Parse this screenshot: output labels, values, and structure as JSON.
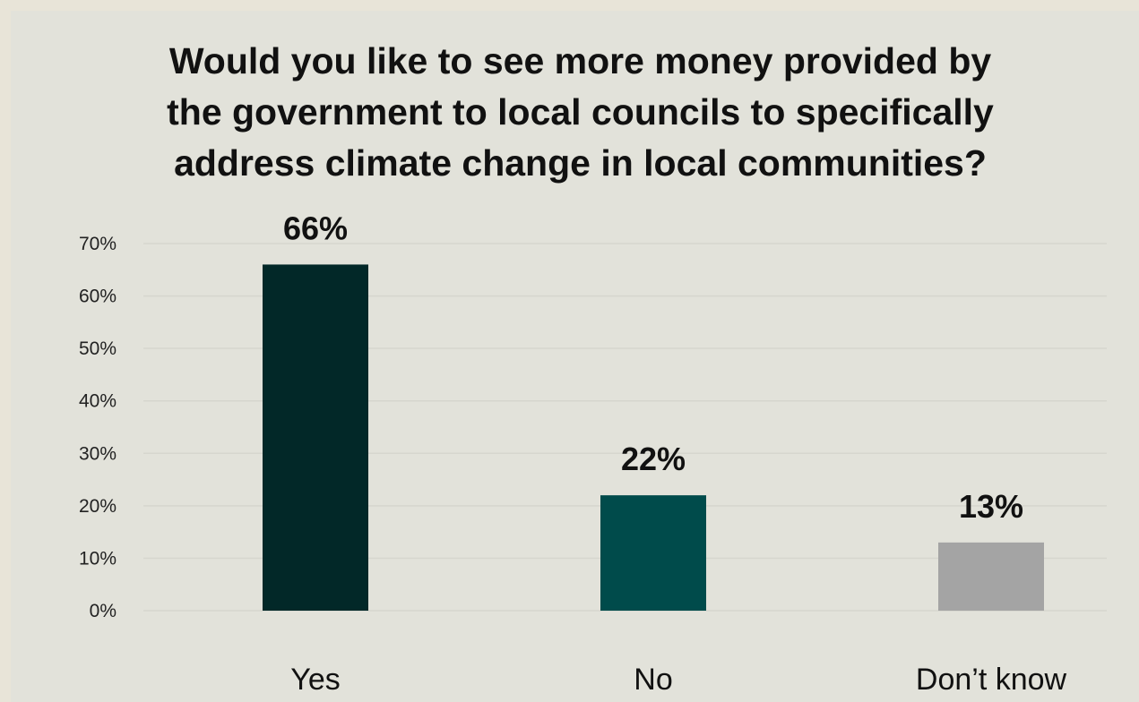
{
  "chart_data": {
    "type": "bar",
    "title": "Would you like to see more money provided by the government to local councils to specifically address climate change in local communities?",
    "title_lines": [
      "Would you like to see more money provided by",
      "the government to local councils to specifically",
      "address climate change in local communities?"
    ],
    "categories": [
      "Yes",
      "No",
      "Don’t know"
    ],
    "values": [
      66,
      22,
      13
    ],
    "data_labels": [
      "66%",
      "22%",
      "13%"
    ],
    "bar_colors": [
      "#022828",
      "#004b4b",
      "#a4a4a4"
    ],
    "ylim": [
      0,
      70
    ],
    "yticks": [
      0,
      10,
      20,
      30,
      40,
      50,
      60,
      70
    ],
    "ytick_labels": [
      "0%",
      "10%",
      "20%",
      "30%",
      "40%",
      "50%",
      "60%",
      "70%"
    ],
    "grid": true,
    "legend": "none",
    "xlabel": "",
    "ylabel": ""
  }
}
